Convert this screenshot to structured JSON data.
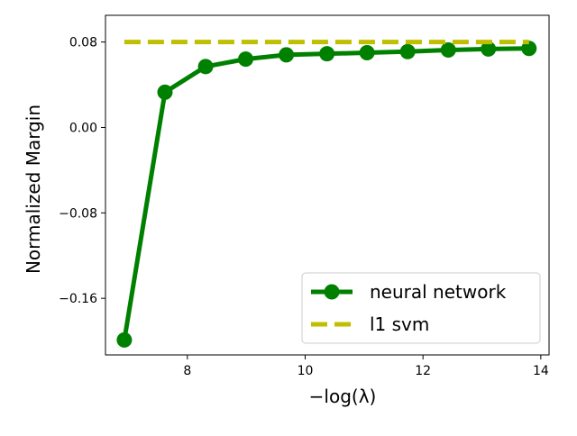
{
  "chart_data": {
    "type": "line",
    "xlabel": "−log(λ)",
    "ylabel": "Normalized Margin",
    "x": [
      6.93,
      7.62,
      8.31,
      8.99,
      9.68,
      10.37,
      11.05,
      11.74,
      12.43,
      13.11,
      13.8
    ],
    "series": [
      {
        "name": "neural network",
        "color": "#008000",
        "marker": "o",
        "linestyle": "solid",
        "values": [
          -0.199,
          0.033,
          0.057,
          0.064,
          0.068,
          0.069,
          0.07,
          0.071,
          0.0725,
          0.0735,
          0.074
        ]
      },
      {
        "name": "l1 svm",
        "color": "#bfbf00",
        "linestyle": "dashed",
        "values": [
          0.08,
          0.08,
          0.08,
          0.08,
          0.08,
          0.08,
          0.08,
          0.08,
          0.08,
          0.08,
          0.08
        ]
      }
    ],
    "xlim": [
      6.61,
      14.14
    ],
    "ylim": [
      -0.213,
      0.105
    ],
    "xticks": [
      8,
      10,
      12,
      14
    ],
    "yticks": [
      {
        "value": -0.16,
        "label": "−0.16"
      },
      {
        "value": -0.08,
        "label": "−0.08"
      },
      {
        "value": 0,
        "label": "0.00"
      },
      0.08
    ],
    "legend": "lower right"
  }
}
